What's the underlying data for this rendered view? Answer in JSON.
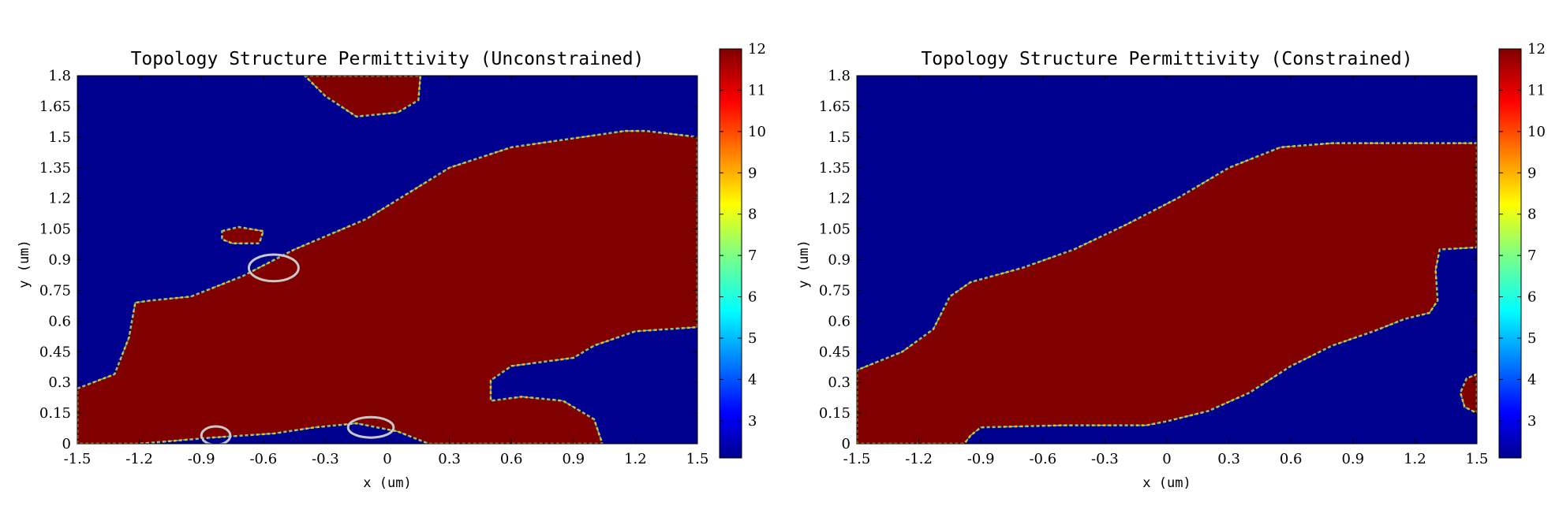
{
  "colors": {
    "low": "#00008f",
    "high": "#800000",
    "marker": "#c8c8c8"
  },
  "chart_data": [
    {
      "type": "heatmap",
      "title": "Topology Structure Permittivity (Unconstrained)",
      "xlabel": "x (um)",
      "ylabel": "y (um)",
      "xlim": [
        -1.5,
        1.5
      ],
      "ylim": [
        0,
        1.8
      ],
      "xticks": [
        "-1.5",
        "-1.2",
        "-0.9",
        "-0.6",
        "-0.3",
        "0",
        "0.3",
        "0.6",
        "0.9",
        "1.2",
        "1.5"
      ],
      "yticks": [
        "0",
        "0.15",
        "0.3",
        "0.45",
        "0.6",
        "0.75",
        "0.9",
        "1.05",
        "1.2",
        "1.35",
        "1.5",
        "1.65",
        "1.8"
      ],
      "colorbar": {
        "min": 2.1,
        "max": 12,
        "ticks": [
          "3",
          "4",
          "5",
          "6",
          "7",
          "8",
          "9",
          "10",
          "11",
          "12"
        ]
      },
      "regions": [
        {
          "value": 12,
          "polygon": [
            [
              -1.5,
              0
            ],
            [
              -1.5,
              0.27
            ],
            [
              -1.32,
              0.34
            ],
            [
              -1.25,
              0.52
            ],
            [
              -1.22,
              0.69
            ],
            [
              -1.15,
              0.7
            ],
            [
              -0.95,
              0.72
            ],
            [
              -0.7,
              0.82
            ],
            [
              -0.45,
              0.95
            ],
            [
              -0.1,
              1.1
            ],
            [
              0.3,
              1.35
            ],
            [
              0.6,
              1.45
            ],
            [
              1.15,
              1.53
            ],
            [
              1.25,
              1.53
            ],
            [
              1.5,
              1.5
            ],
            [
              1.5,
              0.57
            ],
            [
              1.2,
              0.55
            ],
            [
              1.0,
              0.48
            ],
            [
              0.9,
              0.42
            ],
            [
              0.6,
              0.38
            ],
            [
              0.5,
              0.31
            ],
            [
              0.5,
              0.21
            ],
            [
              0.65,
              0.23
            ],
            [
              0.85,
              0.21
            ],
            [
              1.0,
              0.12
            ],
            [
              1.04,
              0
            ],
            [
              0.5,
              0
            ],
            [
              0.2,
              0
            ],
            [
              0.05,
              0.06
            ],
            [
              -0.15,
              0.1
            ],
            [
              -0.35,
              0.08
            ],
            [
              -0.55,
              0.05
            ],
            [
              -0.85,
              0.03
            ],
            [
              -1.2,
              0
            ]
          ]
        },
        {
          "value": 12,
          "polygon": [
            [
              -0.4,
              1.8
            ],
            [
              0.16,
              1.8
            ],
            [
              0.15,
              1.68
            ],
            [
              0.05,
              1.62
            ],
            [
              -0.15,
              1.6
            ],
            [
              -0.3,
              1.7
            ]
          ]
        },
        {
          "value": 12,
          "polygon": [
            [
              -0.8,
              1.04
            ],
            [
              -0.72,
              1.06
            ],
            [
              -0.6,
              1.04
            ],
            [
              -0.62,
              0.98
            ],
            [
              -0.75,
              0.98
            ],
            [
              -0.8,
              1.0
            ]
          ]
        }
      ],
      "markers": [
        {
          "cx": -0.55,
          "cy": 0.86,
          "rx": 0.12,
          "ry": 0.065
        },
        {
          "cx": -0.83,
          "cy": 0.04,
          "rx": 0.07,
          "ry": 0.045
        },
        {
          "cx": -0.08,
          "cy": 0.08,
          "rx": 0.11,
          "ry": 0.05
        }
      ]
    },
    {
      "type": "heatmap",
      "title": "Topology Structure Permittivity (Constrained)",
      "xlabel": "x (um)",
      "ylabel": "y (um)",
      "xlim": [
        -1.5,
        1.5
      ],
      "ylim": [
        0,
        1.8
      ],
      "xticks": [
        "-1.5",
        "-1.2",
        "-0.9",
        "-0.6",
        "-0.3",
        "0",
        "0.3",
        "0.6",
        "0.9",
        "1.2",
        "1.5"
      ],
      "yticks": [
        "0",
        "0.15",
        "0.3",
        "0.45",
        "0.6",
        "0.75",
        "0.9",
        "1.05",
        "1.2",
        "1.35",
        "1.5",
        "1.65",
        "1.8"
      ],
      "colorbar": {
        "min": 2.1,
        "max": 12,
        "ticks": [
          "3",
          "4",
          "5",
          "6",
          "7",
          "8",
          "9",
          "10",
          "11",
          "12"
        ]
      },
      "regions": [
        {
          "value": 12,
          "polygon": [
            [
              -1.5,
              0
            ],
            [
              -1.5,
              0.36
            ],
            [
              -1.28,
              0.45
            ],
            [
              -1.13,
              0.56
            ],
            [
              -1.05,
              0.72
            ],
            [
              -0.95,
              0.79
            ],
            [
              -0.7,
              0.86
            ],
            [
              -0.45,
              0.95
            ],
            [
              -0.2,
              1.07
            ],
            [
              0.05,
              1.2
            ],
            [
              0.3,
              1.35
            ],
            [
              0.55,
              1.45
            ],
            [
              0.8,
              1.47
            ],
            [
              1.1,
              1.47
            ],
            [
              1.5,
              1.47
            ],
            [
              1.5,
              0.96
            ],
            [
              1.32,
              0.95
            ],
            [
              1.3,
              0.85
            ],
            [
              1.31,
              0.7
            ],
            [
              1.27,
              0.64
            ],
            [
              1.15,
              0.61
            ],
            [
              1.0,
              0.55
            ],
            [
              0.8,
              0.48
            ],
            [
              0.6,
              0.38
            ],
            [
              0.4,
              0.25
            ],
            [
              0.2,
              0.16
            ],
            [
              0.0,
              0.11
            ],
            [
              -0.1,
              0.09
            ],
            [
              -0.5,
              0.09
            ],
            [
              -0.9,
              0.08
            ],
            [
              -0.95,
              0.04
            ],
            [
              -0.98,
              0
            ]
          ]
        },
        {
          "value": 12,
          "polygon": [
            [
              1.5,
              0.34
            ],
            [
              1.45,
              0.32
            ],
            [
              1.42,
              0.25
            ],
            [
              1.44,
              0.18
            ],
            [
              1.5,
              0.15
            ]
          ]
        }
      ]
    }
  ]
}
